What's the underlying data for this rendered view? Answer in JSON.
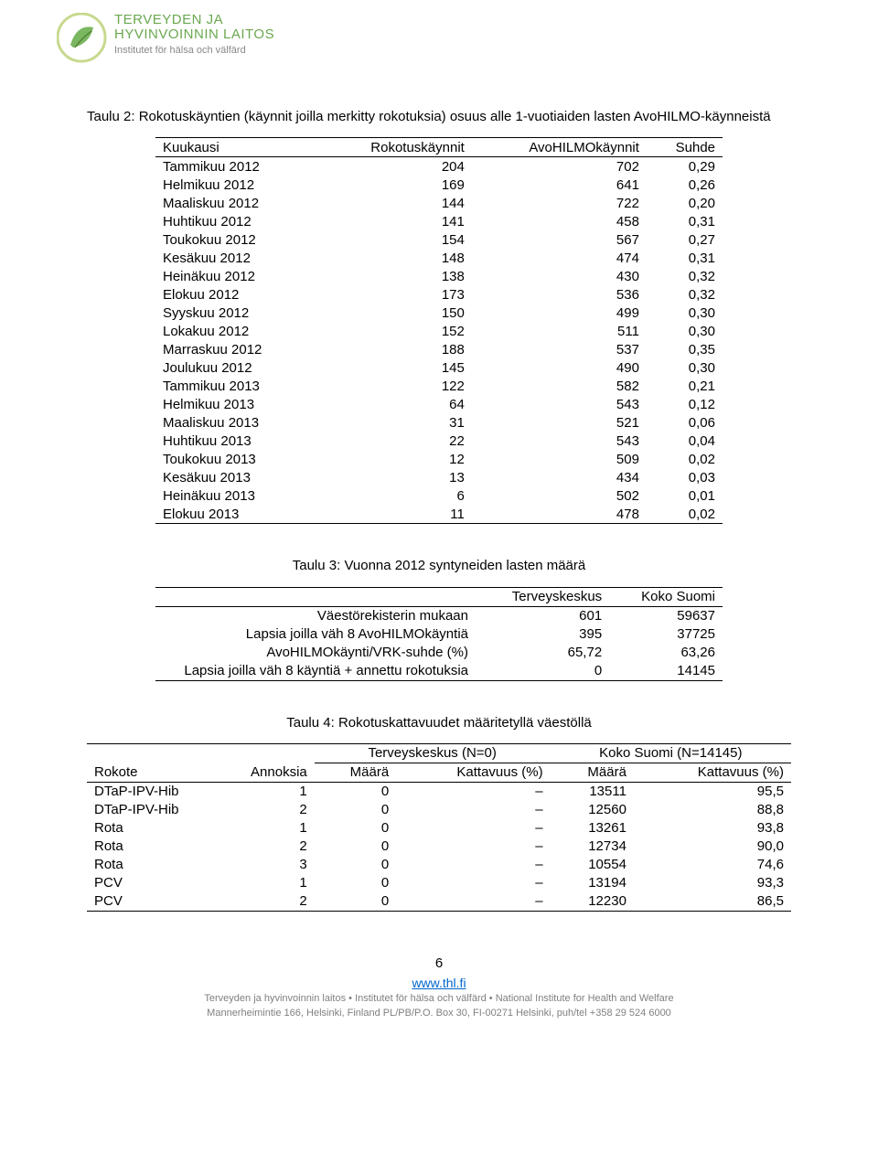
{
  "logo": {
    "line1": "TERVEYDEN JA",
    "line2": "HYVINVOINNIN LAITOS",
    "line3": "Institutet för hälsa och välfärd"
  },
  "table2": {
    "caption": "Taulu 2: Rokotuskäyntien (käynnit joilla merkitty rokotuksia) osuus alle 1-vuotiaiden lasten AvoHILMO-käynneistä",
    "headers": [
      "Kuukausi",
      "Rokotuskäynnit",
      "AvoHILMOkäynnit",
      "Suhde"
    ],
    "rows": [
      [
        "Tammikuu 2012",
        "204",
        "702",
        "0,29"
      ],
      [
        "Helmikuu 2012",
        "169",
        "641",
        "0,26"
      ],
      [
        "Maaliskuu 2012",
        "144",
        "722",
        "0,20"
      ],
      [
        "Huhtikuu 2012",
        "141",
        "458",
        "0,31"
      ],
      [
        "Toukokuu 2012",
        "154",
        "567",
        "0,27"
      ],
      [
        "Kesäkuu 2012",
        "148",
        "474",
        "0,31"
      ],
      [
        "Heinäkuu 2012",
        "138",
        "430",
        "0,32"
      ],
      [
        "Elokuu 2012",
        "173",
        "536",
        "0,32"
      ],
      [
        "Syyskuu 2012",
        "150",
        "499",
        "0,30"
      ],
      [
        "Lokakuu 2012",
        "152",
        "511",
        "0,30"
      ],
      [
        "Marraskuu 2012",
        "188",
        "537",
        "0,35"
      ],
      [
        "Joulukuu 2012",
        "145",
        "490",
        "0,30"
      ],
      [
        "Tammikuu 2013",
        "122",
        "582",
        "0,21"
      ],
      [
        "Helmikuu 2013",
        "64",
        "543",
        "0,12"
      ],
      [
        "Maaliskuu 2013",
        "31",
        "521",
        "0,06"
      ],
      [
        "Huhtikuu 2013",
        "22",
        "543",
        "0,04"
      ],
      [
        "Toukokuu 2013",
        "12",
        "509",
        "0,02"
      ],
      [
        "Kesäkuu 2013",
        "13",
        "434",
        "0,03"
      ],
      [
        "Heinäkuu 2013",
        "6",
        "502",
        "0,01"
      ],
      [
        "Elokuu 2013",
        "11",
        "478",
        "0,02"
      ]
    ]
  },
  "table3": {
    "caption": "Taulu 3: Vuonna 2012 syntyneiden lasten määrä",
    "headers": [
      "",
      "Terveyskeskus",
      "Koko Suomi"
    ],
    "rows": [
      [
        "Väestörekisterin mukaan",
        "601",
        "59637"
      ],
      [
        "Lapsia joilla väh 8 AvoHILMOkäyntiä",
        "395",
        "37725"
      ],
      [
        "AvoHILMOkäynti/VRK-suhde (%)",
        "65,72",
        "63,26"
      ],
      [
        "Lapsia joilla väh 8 käyntiä + annettu rokotuksia",
        "0",
        "14145"
      ]
    ]
  },
  "table4": {
    "caption": "Taulu 4: Rokotuskattavuudet määritetyllä väestöllä",
    "group_left": "Terveyskeskus (N=0)",
    "group_right": "Koko Suomi (N=14145)",
    "headers": [
      "Rokote",
      "Annoksia",
      "Määrä",
      "Kattavuus (%)",
      "Määrä",
      "Kattavuus (%)"
    ],
    "rows": [
      [
        "DTaP-IPV-Hib",
        "1",
        "0",
        "–",
        "13511",
        "95,5"
      ],
      [
        "DTaP-IPV-Hib",
        "2",
        "0",
        "–",
        "12560",
        "88,8"
      ],
      [
        "Rota",
        "1",
        "0",
        "–",
        "13261",
        "93,8"
      ],
      [
        "Rota",
        "2",
        "0",
        "–",
        "12734",
        "90,0"
      ],
      [
        "Rota",
        "3",
        "0",
        "–",
        "10554",
        "74,6"
      ],
      [
        "PCV",
        "1",
        "0",
        "–",
        "13194",
        "93,3"
      ],
      [
        "PCV",
        "2",
        "0",
        "–",
        "12230",
        "86,5"
      ]
    ]
  },
  "page_number": "6",
  "footer": {
    "url": "www.thl.fi",
    "line1": "Terveyden ja hyvinvoinnin laitos • Institutet för hälsa och välfärd • National Institute for Health and Welfare",
    "line2": "Mannerheimintie 166, Helsinki, Finland PL/PB/P.O. Box 30, FI-00271 Helsinki, puh/tel +358 29 524 6000"
  }
}
